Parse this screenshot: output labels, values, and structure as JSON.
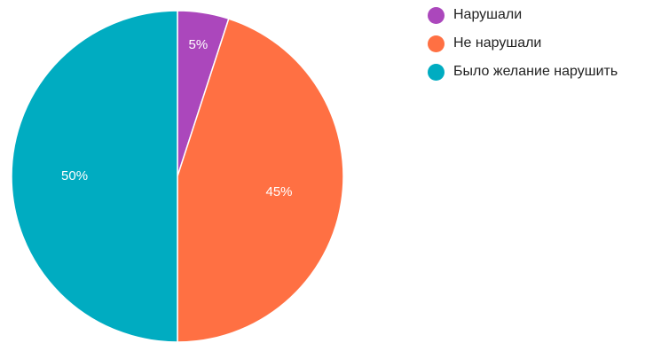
{
  "chart_data": {
    "type": "pie",
    "title": "",
    "legend_position": "top-right",
    "slices": [
      {
        "label": "Нарушали",
        "value": 5,
        "value_label": "5%",
        "color": "#ab47bc"
      },
      {
        "label": "Не нарушали",
        "value": 45,
        "value_label": "45%",
        "color": "#ff7043"
      },
      {
        "label": "Было желание нарушить",
        "value": 50,
        "value_label": "50%",
        "color": "#00acc1"
      }
    ]
  }
}
